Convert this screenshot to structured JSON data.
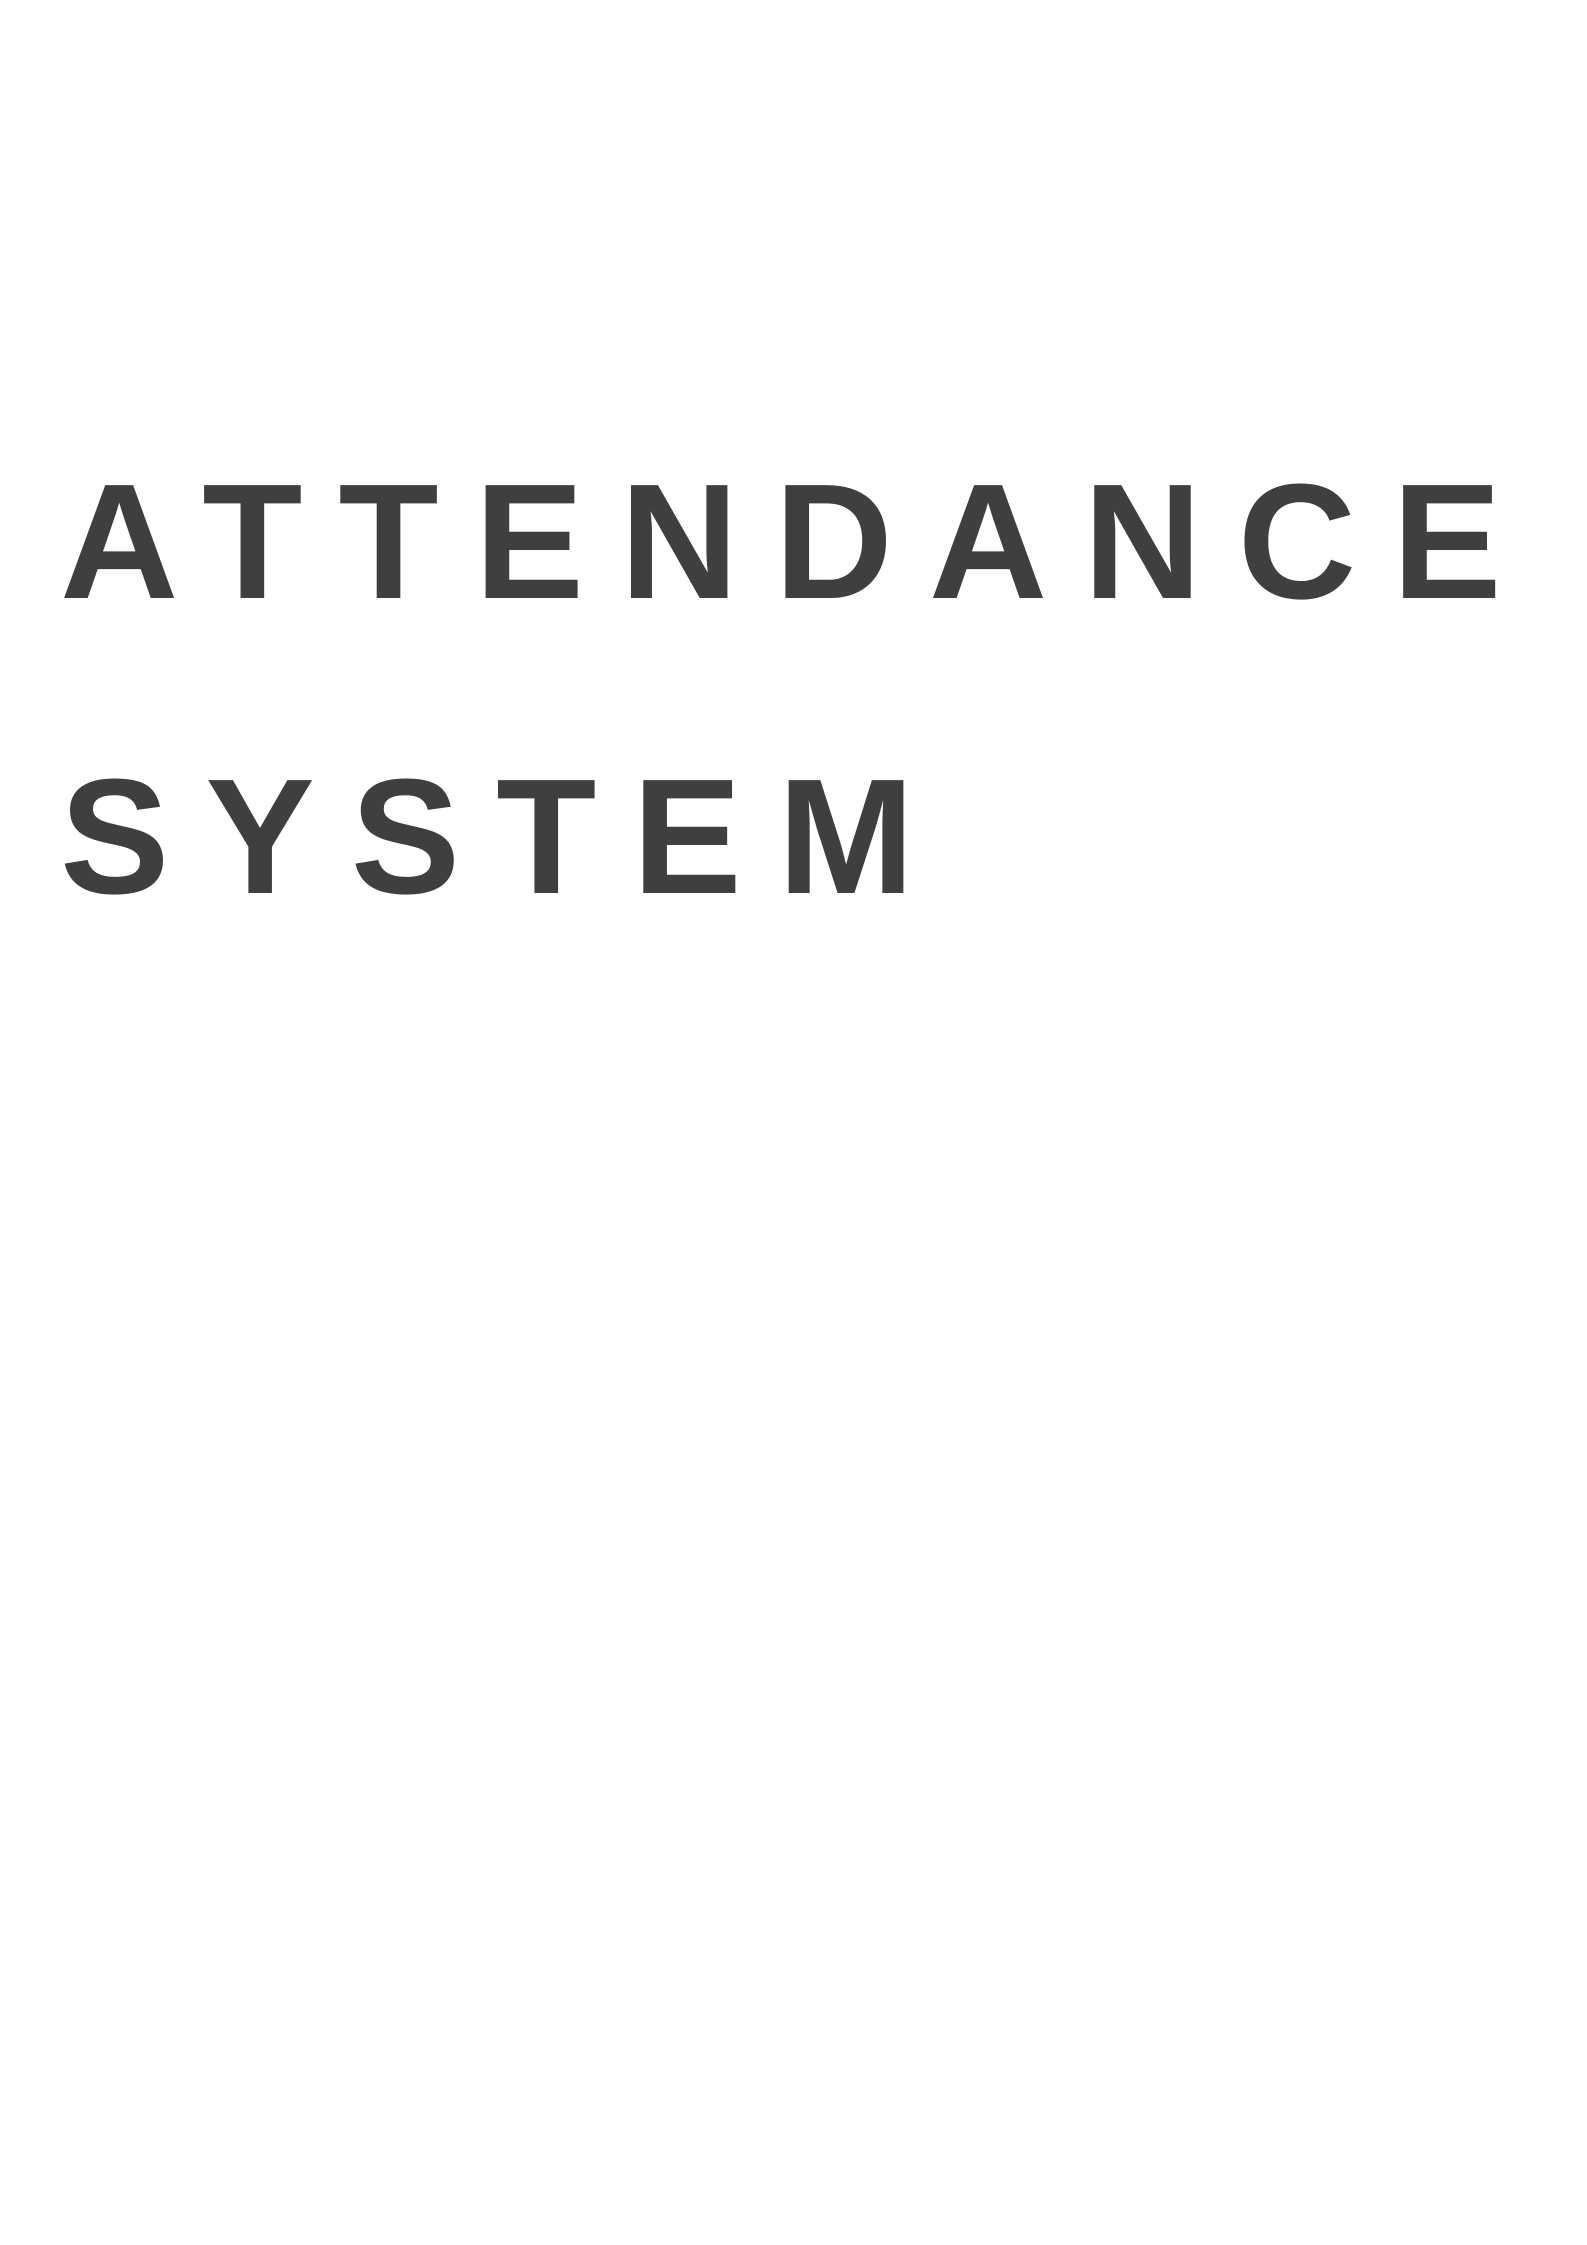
{
  "document": {
    "title_line_1": "ATTENDANCE",
    "title_line_2": "SYSTEM",
    "text_color": "#3f3f3f",
    "background_color": "#ffffff"
  }
}
